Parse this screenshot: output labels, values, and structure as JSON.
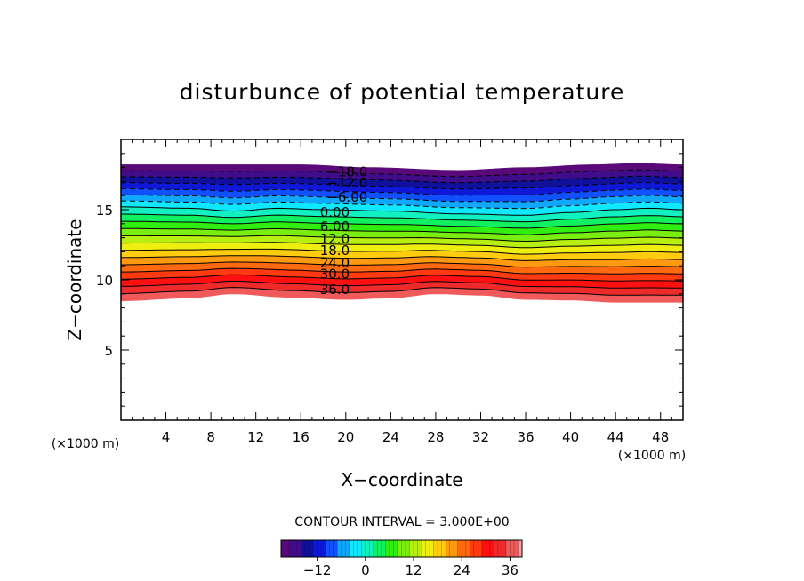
{
  "chart_data": {
    "type": "contour",
    "title": "disturbunce of potential temperature",
    "xlabel": "X−coordinate",
    "ylabel": "Z−coordinate",
    "x_unit": "(×1000 m)",
    "y_unit": "(×1000 m)",
    "xlim": [
      0,
      50
    ],
    "ylim": [
      0,
      20
    ],
    "x_ticks": [
      4,
      8,
      12,
      16,
      20,
      24,
      28,
      32,
      36,
      40,
      44,
      48
    ],
    "x_tick_labels": [
      "4",
      "8",
      "12",
      "16",
      "20",
      "24",
      "28",
      "32",
      "36",
      "40",
      "44",
      "48"
    ],
    "y_ticks": [
      5,
      10,
      15
    ],
    "y_tick_labels": [
      "5",
      "10",
      "15"
    ],
    "contour_interval": 3.0,
    "contour_interval_text": "CONTOUR INTERVAL = 3.000E+00",
    "value_range": [
      -21,
      39
    ],
    "field": {
      "bottom_edge_z": [
        [
          0,
          8.5
        ],
        [
          6,
          8.7
        ],
        [
          10,
          9.0
        ],
        [
          15,
          8.75
        ],
        [
          20,
          8.6
        ],
        [
          24,
          8.7
        ],
        [
          28,
          9.0
        ],
        [
          32,
          8.9
        ],
        [
          36,
          8.6
        ],
        [
          40,
          8.55
        ],
        [
          44,
          8.4
        ],
        [
          50,
          8.4
        ]
      ],
      "top_edge_z": [
        [
          0,
          18.2
        ],
        [
          8,
          18.2
        ],
        [
          16,
          18.2
        ],
        [
          22,
          18.0
        ],
        [
          30,
          17.8
        ],
        [
          36,
          18.0
        ],
        [
          42,
          18.2
        ],
        [
          46,
          18.3
        ],
        [
          50,
          18.2
        ]
      ],
      "zero_line_z": [
        [
          0,
          15.2
        ],
        [
          6,
          15.1
        ],
        [
          10,
          14.9
        ],
        [
          14,
          15.1
        ],
        [
          18,
          15.0
        ],
        [
          24,
          14.9
        ],
        [
          30,
          14.7
        ],
        [
          36,
          14.6
        ],
        [
          40,
          14.8
        ],
        [
          44,
          15.0
        ],
        [
          47,
          15.1
        ],
        [
          50,
          15.0
        ]
      ],
      "negative_lines_dashed": true
    },
    "contour_labels": [
      {
        "text": "−18.0",
        "x": 18.3,
        "z": 17.7
      },
      {
        "text": "−12.0",
        "x": 18.3,
        "z": 16.9
      },
      {
        "text": "−6.00",
        "x": 18.3,
        "z": 15.9
      },
      {
        "text": "0.00",
        "x": 17.7,
        "z": 14.8
      },
      {
        "text": "6.00",
        "x": 17.7,
        "z": 13.8
      },
      {
        "text": "12.0",
        "x": 17.7,
        "z": 12.9
      },
      {
        "text": "18.0",
        "x": 17.7,
        "z": 12.1
      },
      {
        "text": "24.0",
        "x": 17.7,
        "z": 11.2
      },
      {
        "text": "30.0",
        "x": 17.7,
        "z": 10.4
      },
      {
        "text": "36.0",
        "x": 17.7,
        "z": 9.3
      }
    ],
    "colorbar": {
      "ticks": [
        -12,
        0,
        12,
        24,
        36
      ],
      "tick_labels": [
        "−12",
        "0",
        "12",
        "24",
        "36"
      ]
    },
    "colormap_stops": [
      [
        -21,
        "#5a0a78"
      ],
      [
        -18,
        "#400c8a"
      ],
      [
        -15,
        "#10109a"
      ],
      [
        -12,
        "#1018d8"
      ],
      [
        -9,
        "#1050ff"
      ],
      [
        -6,
        "#10a8ff"
      ],
      [
        -3,
        "#10e8ff"
      ],
      [
        0,
        "#10f0c0"
      ],
      [
        3,
        "#10f060"
      ],
      [
        6,
        "#30ee10"
      ],
      [
        9,
        "#7aee10"
      ],
      [
        12,
        "#b8ee10"
      ],
      [
        15,
        "#eeee10"
      ],
      [
        18,
        "#ffcc10"
      ],
      [
        21,
        "#ff9a10"
      ],
      [
        24,
        "#ff6a10"
      ],
      [
        27,
        "#ff3a10"
      ],
      [
        30,
        "#ff1010"
      ],
      [
        33,
        "#ef2a2a"
      ],
      [
        36,
        "#f05a5a"
      ],
      [
        39,
        "#f8a0a0"
      ]
    ]
  }
}
